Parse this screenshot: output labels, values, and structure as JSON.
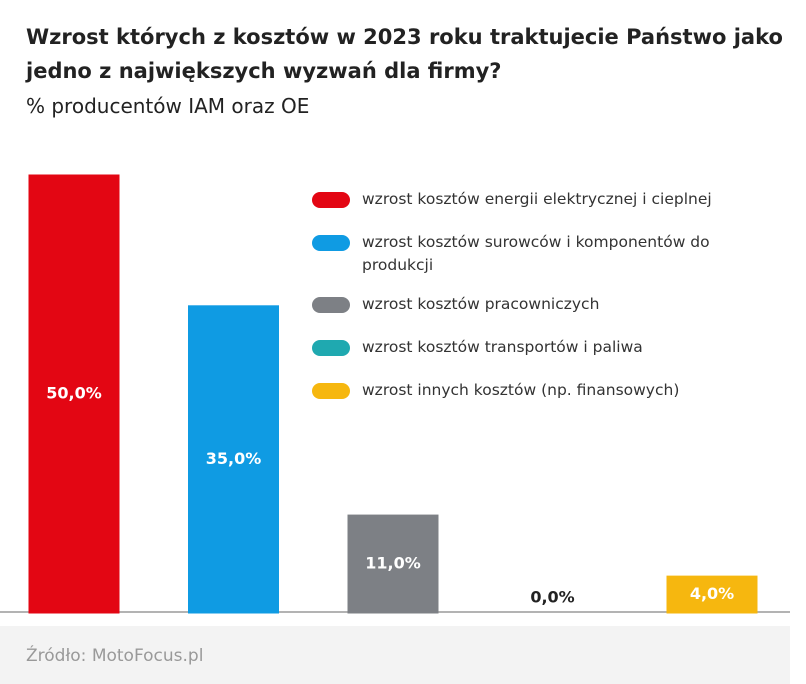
{
  "chart_data": {
    "type": "bar",
    "title": "Wzrost których z kosztów w 2023 roku traktujecie Państwo jako jedno z największych wyzwań dla firmy?",
    "subtitle": "% producentów IAM oraz OE",
    "categories": [
      "wzrost kosztów energii elektrycznej i cieplnej",
      "wzrost kosztów surowców i komponentów do produkcji",
      "wzrost kosztów pracowniczych",
      "wzrost kosztów transportów i paliwa",
      "wzrost innych kosztów (np. finansowych)"
    ],
    "values": [
      50,
      35,
      11,
      0,
      4
    ],
    "value_labels": [
      "50,0%",
      "35,0%",
      "11,0%",
      "0,0%",
      "4,0%"
    ],
    "colors": [
      "#e30613",
      "#0f9be3",
      "#7d8085",
      "#1fa9b0",
      "#f6b70f"
    ],
    "source": "Źródło: MotoFocus.pl"
  }
}
